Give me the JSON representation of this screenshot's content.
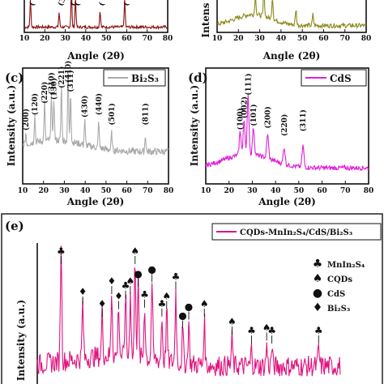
{
  "chart_data": [
    {
      "type": "line",
      "panel_letter": "",
      "color": "#8b1010",
      "xlabel": "Angle (2θ)",
      "ylabel": "",
      "xlim": [
        10,
        80
      ],
      "xticks": [
        10,
        20,
        30,
        40,
        50,
        60,
        70,
        80
      ],
      "series_name": "",
      "peaks": [
        13,
        27,
        33,
        35,
        47,
        59
      ],
      "peak_heights": [
        0.55,
        0.3,
        0.8,
        0.6,
        0.35,
        0.55
      ],
      "partial_labels": [
        "(",
        "(3",
        "(",
        "(",
        "(",
        "("
      ]
    },
    {
      "type": "line",
      "panel_letter": "",
      "color": "#8c8a1a",
      "xlabel": "Angle (2θ)",
      "ylabel": "Intens",
      "xlim": [
        10,
        80
      ],
      "xticks": [
        10,
        20,
        30,
        40,
        50,
        60,
        70,
        80
      ],
      "series_name": "",
      "peaks": [
        28,
        32,
        36,
        47,
        55
      ],
      "peak_heights": [
        0.45,
        0.6,
        0.5,
        0.35,
        0.25
      ]
    },
    {
      "type": "line",
      "panel_letter": "(c)",
      "color": "#aaaaaa",
      "xlabel": "Angle (2θ)",
      "ylabel": "Intensity (a.u.)",
      "xlim": [
        10,
        80
      ],
      "xticks": [
        10,
        20,
        30,
        40,
        50,
        60,
        70,
        80
      ],
      "series_name": "Bi₂S₃",
      "peaks": [
        {
          "x": 11.5,
          "h": 0.15,
          "label": "(200)"
        },
        {
          "x": 15.8,
          "h": 0.35,
          "label": "(120)"
        },
        {
          "x": 20.5,
          "h": 0.5,
          "label": "(220)"
        },
        {
          "x": 23.8,
          "h": 0.62,
          "label": "(310)"
        },
        {
          "x": 25.0,
          "h": 0.55,
          "label": "(130)"
        },
        {
          "x": 28.6,
          "h": 0.7,
          "label": "(221)"
        },
        {
          "x": 31.8,
          "h": 0.95,
          "label": "(410)"
        },
        {
          "x": 33.0,
          "h": 0.65,
          "label": "(311)"
        },
        {
          "x": 39.8,
          "h": 0.32,
          "label": "(430)"
        },
        {
          "x": 46.5,
          "h": 0.35,
          "label": "(440)"
        },
        {
          "x": 52.7,
          "h": 0.22,
          "label": "(501)"
        },
        {
          "x": 68.9,
          "h": 0.22,
          "label": "(811)"
        }
      ]
    },
    {
      "type": "line",
      "panel_letter": "(d)",
      "color": "#e020d8",
      "xlabel": "Angle (2θ)",
      "ylabel": "Intensity (a.u.)",
      "xlim": [
        10,
        80
      ],
      "xticks": [
        10,
        20,
        30,
        40,
        50,
        60,
        70,
        80
      ],
      "series_name": "CdS",
      "peaks": [
        {
          "x": 24.8,
          "h": 0.3,
          "label": "(100)"
        },
        {
          "x": 26.5,
          "h": 0.45,
          "label": "(002)"
        },
        {
          "x": 28.2,
          "h": 0.75,
          "label": "(111)"
        },
        {
          "x": 30.5,
          "h": 0.35,
          "label": "(101)"
        },
        {
          "x": 36.6,
          "h": 0.32,
          "label": "(200)"
        },
        {
          "x": 43.7,
          "h": 0.22,
          "label": "(220)"
        },
        {
          "x": 51.8,
          "h": 0.28,
          "label": "(311)"
        }
      ]
    },
    {
      "type": "line",
      "panel_letter": "(e)",
      "color": "#e0147f",
      "xlabel": "",
      "ylabel": "Intensity (a.u.)",
      "xlim": [
        10,
        80
      ],
      "series_name": "CQDs-MnIn₂S₄/CdS/Bi₂S₃",
      "legend_items": [
        {
          "symbol": "♣",
          "label": "MnIn₂S₄"
        },
        {
          "symbol": "♠",
          "label": "CQDs"
        },
        {
          "symbol": "●",
          "label": "CdS"
        },
        {
          "symbol": "♦",
          "label": "Bi₂S₃"
        }
      ],
      "peaks": [
        {
          "x": 15.5,
          "h": 0.82,
          "marker": "♣"
        },
        {
          "x": 20.5,
          "h": 0.38,
          "marker": "♦"
        },
        {
          "x": 25.0,
          "h": 0.3,
          "marker": "♦"
        },
        {
          "x": 27.2,
          "h": 0.45,
          "marker": "♦"
        },
        {
          "x": 28.8,
          "h": 0.35,
          "marker": "♦"
        },
        {
          "x": 30.4,
          "h": 0.42,
          "marker": "♣"
        },
        {
          "x": 31.5,
          "h": 0.45,
          "marker": "♠"
        },
        {
          "x": 32.6,
          "h": 0.68,
          "marker": "♠"
        },
        {
          "x": 33.3,
          "h": 0.5,
          "marker": "●"
        },
        {
          "x": 34.8,
          "h": 0.36,
          "marker": "♣"
        },
        {
          "x": 36.5,
          "h": 0.53,
          "marker": "●"
        },
        {
          "x": 38.8,
          "h": 0.3,
          "marker": "♣"
        },
        {
          "x": 39.9,
          "h": 0.35,
          "marker": "♠"
        },
        {
          "x": 42.0,
          "h": 0.48,
          "marker": "♣"
        },
        {
          "x": 43.6,
          "h": 0.22,
          "marker": "●"
        },
        {
          "x": 45.0,
          "h": 0.28,
          "marker": "●"
        },
        {
          "x": 48.6,
          "h": 0.3,
          "marker": "♠"
        },
        {
          "x": 55.0,
          "h": 0.18,
          "marker": "♠"
        },
        {
          "x": 59.5,
          "h": 0.12,
          "marker": "♣"
        },
        {
          "x": 63.0,
          "h": 0.14,
          "marker": "♠"
        },
        {
          "x": 64.2,
          "h": 0.12,
          "marker": "♣"
        },
        {
          "x": 75.0,
          "h": 0.12,
          "marker": "♣"
        }
      ]
    }
  ]
}
